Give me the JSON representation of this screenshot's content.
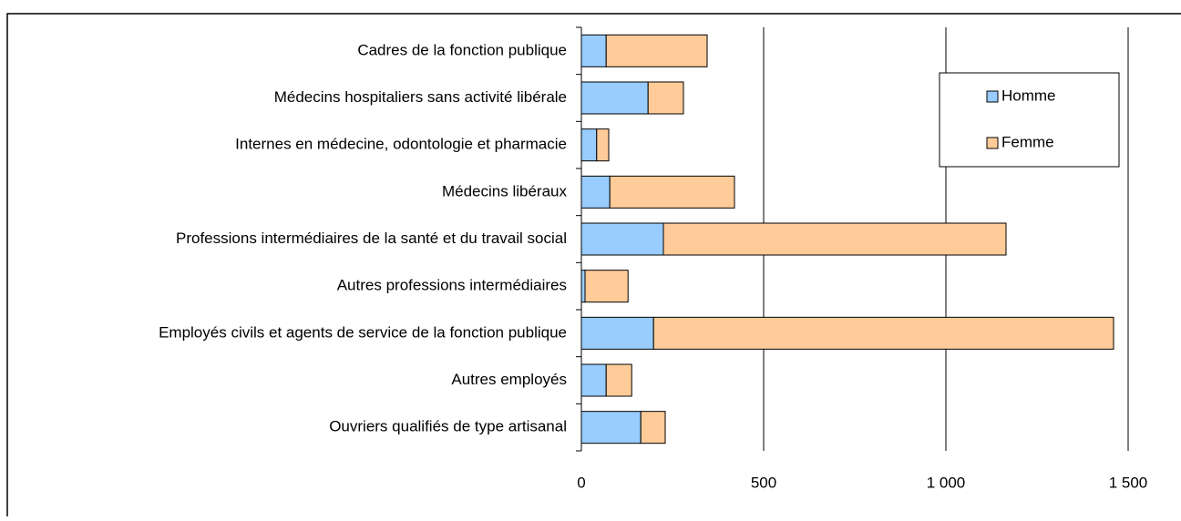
{
  "chart_data": {
    "type": "bar",
    "orientation": "horizontal",
    "stacked": true,
    "categories": [
      "Cadres de la fonction publique",
      "Médecins hospitaliers sans activité libérale",
      "Internes en médecine, odontologie et pharmacie",
      "Médecins libéraux",
      "Professions intermédiaires de la santé et du travail social",
      "Autres professions intermédiaires",
      "Employés civils et agents de service de la fonction publique",
      "Autres employés",
      "Ouvriers qualifiés de type artisanal"
    ],
    "series": [
      {
        "name": "Homme",
        "color": "#99ccff",
        "values": [
          68,
          183,
          42,
          78,
          225,
          10,
          198,
          68,
          163
        ]
      },
      {
        "name": "Femme",
        "color": "#ffcc99",
        "values": [
          277,
          97,
          33,
          342,
          940,
          118,
          1262,
          70,
          67
        ]
      }
    ],
    "xlim": [
      0,
      1500
    ],
    "xticks": [
      0,
      500,
      {
        "value": 1000,
        "label": "1 000"
      },
      {
        "value": 1500,
        "label": "1 500"
      }
    ],
    "grid": true,
    "legend": "upper right"
  }
}
